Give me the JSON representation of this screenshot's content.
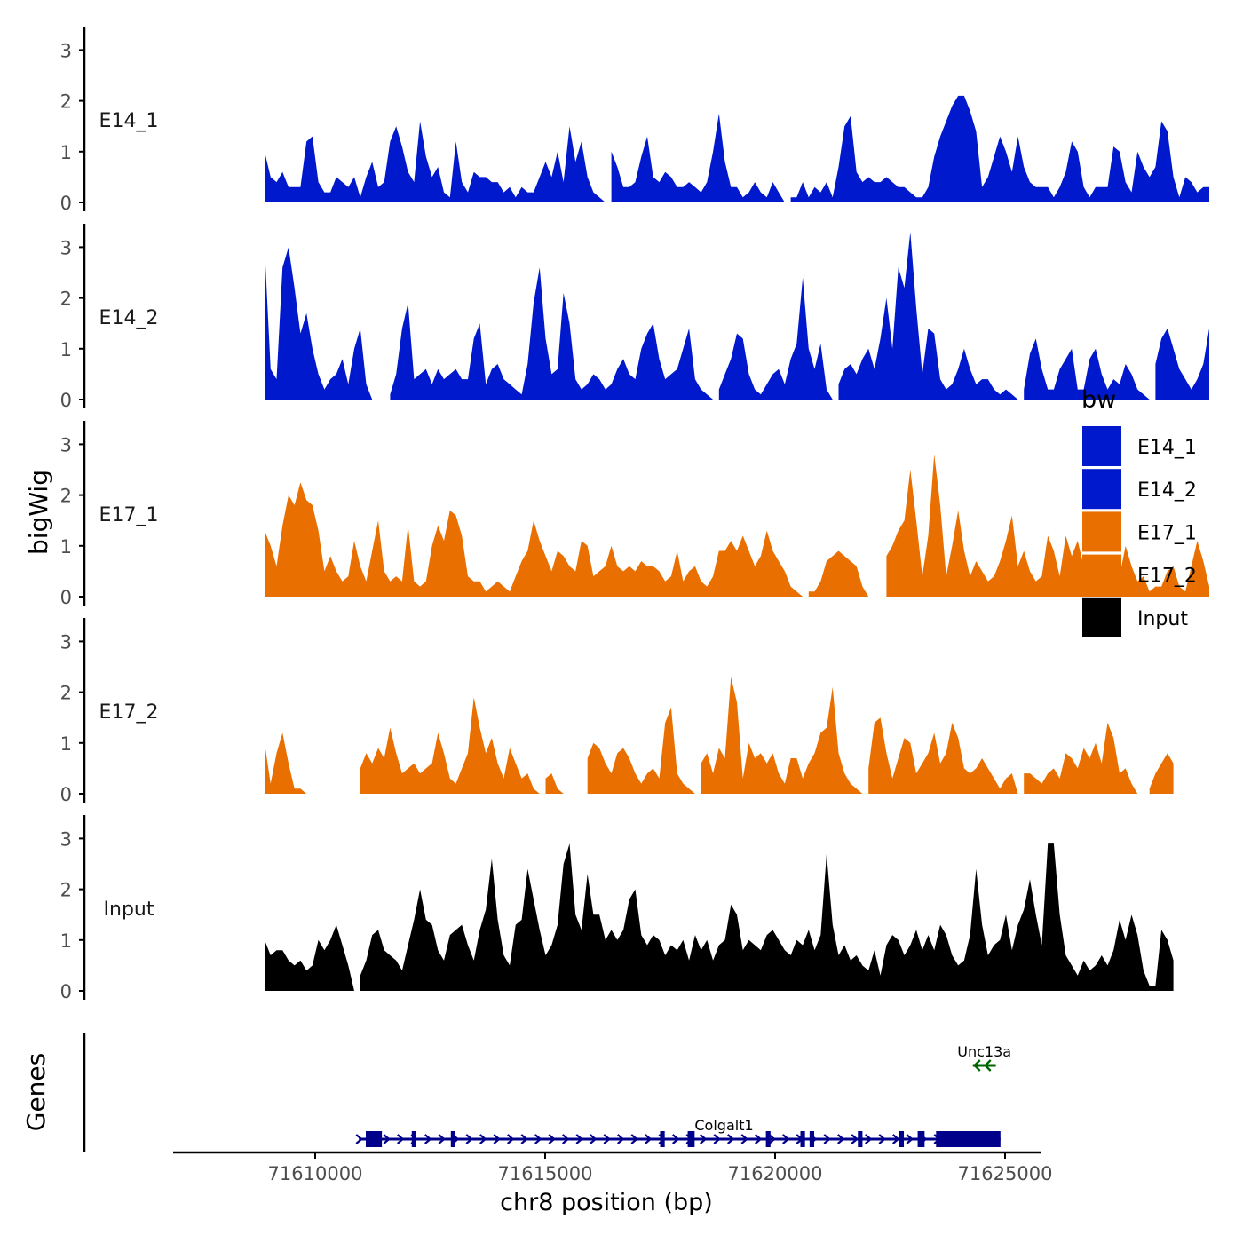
{
  "chart_data": {
    "type": "area",
    "y_axis_title": "bigWig",
    "genes_axis_title": "Genes",
    "xlabel": "chr8 position (bp)",
    "xlim": [
      71606000,
      71626000
    ],
    "x_ticks": [
      71610000,
      71615000,
      71620000,
      71625000
    ],
    "x_tick_labels": [
      "71610000",
      "71615000",
      "71620000",
      "71625000"
    ],
    "ylim": [
      0,
      3.4
    ],
    "y_ticks": [
      0,
      1,
      2,
      3
    ],
    "y_tick_labels": [
      "0",
      "1",
      "2",
      "3"
    ],
    "x_start": 71608900,
    "bin_width": 130,
    "legend": {
      "title": "bw",
      "position": "right",
      "items": [
        {
          "label": "E14_1",
          "color": "#0019CC"
        },
        {
          "label": "E14_2",
          "color": "#0019CC"
        },
        {
          "label": "E17_1",
          "color": "#E97000"
        },
        {
          "label": "E17_2",
          "color": "#E97000"
        },
        {
          "label": "Input",
          "color": "#000000"
        }
      ]
    },
    "tracks": [
      {
        "name": "E14_1",
        "color": "#0019CC",
        "values": [
          1.0,
          0.5,
          0.4,
          0.6,
          0.3,
          0.3,
          0.3,
          1.2,
          1.3,
          0.4,
          0.2,
          0.2,
          0.5,
          0.4,
          0.3,
          0.5,
          0.1,
          0.5,
          0.8,
          0.3,
          0.4,
          1.2,
          1.5,
          1.1,
          0.6,
          0.4,
          1.6,
          0.9,
          0.5,
          0.7,
          0.2,
          0.1,
          1.2,
          0.4,
          0.2,
          0.6,
          0.5,
          0.5,
          0.4,
          0.4,
          0.2,
          0.3,
          0.1,
          0.3,
          0.2,
          0.2,
          0.5,
          0.8,
          0.5,
          1.0,
          0.4,
          1.5,
          0.8,
          1.2,
          0.5,
          0.2,
          0.1,
          0,
          1.0,
          0.7,
          0.3,
          0.3,
          0.4,
          0.9,
          1.3,
          0.5,
          0.4,
          0.6,
          0.5,
          0.3,
          0.3,
          0.4,
          0.3,
          0.2,
          0.4,
          1.0,
          1.75,
          0.8,
          0.3,
          0.3,
          0.1,
          0.2,
          0.4,
          0.2,
          0.1,
          0.4,
          0.2,
          0.0,
          0.1,
          0.1,
          0.4,
          0.1,
          0.3,
          0.2,
          0.4,
          0.1,
          0.7,
          1.5,
          1.7,
          0.6,
          0.4,
          0.5,
          0.4,
          0.4,
          0.5,
          0.4,
          0.3,
          0.3,
          0.2,
          0.1,
          0.1,
          0.3,
          0.9,
          1.3,
          1.6,
          1.9,
          2.1,
          2.1,
          1.8,
          1.4,
          0.3,
          0.5,
          0.9,
          1.3,
          1.0,
          0.6,
          1.3,
          0.7,
          0.4,
          0.3,
          0.3,
          0.3,
          0.1,
          0.3,
          0.6,
          1.2,
          1.0,
          0.3,
          0.1,
          0.3,
          0.3,
          0.3,
          1.1,
          1.0,
          0.4,
          0.2,
          1.0,
          0.7,
          0.5,
          0.7,
          1.6,
          1.4,
          0.5,
          0.1,
          0.5,
          0.4,
          0.2,
          0.3,
          0.3
        ]
      },
      {
        "name": "E14_2",
        "color": "#0019CC",
        "values": [
          3.0,
          0.6,
          0.4,
          2.6,
          3.0,
          2.2,
          1.3,
          1.7,
          1.0,
          0.5,
          0.2,
          0.4,
          0.5,
          0.8,
          0.3,
          1.0,
          1.4,
          0.3,
          0,
          0,
          0,
          0.1,
          0.5,
          1.4,
          1.9,
          0.4,
          0.5,
          0.6,
          0.3,
          0.6,
          0.4,
          0.5,
          0.6,
          0.4,
          0.4,
          1.2,
          1.5,
          0.3,
          0.6,
          0.7,
          0.4,
          0.3,
          0.2,
          0.1,
          0.7,
          1.9,
          2.6,
          1.2,
          0.5,
          0.6,
          2.1,
          1.5,
          0.4,
          0.2,
          0.3,
          0.5,
          0.4,
          0.2,
          0.3,
          0.6,
          0.8,
          0.5,
          0.4,
          1.0,
          1.3,
          1.5,
          0.8,
          0.4,
          0.5,
          0.6,
          1.0,
          1.4,
          0.4,
          0.2,
          0.1,
          0.0,
          0.2,
          0.5,
          0.8,
          1.3,
          1.2,
          0.5,
          0.2,
          0.1,
          0.3,
          0.5,
          0.6,
          0.3,
          0.8,
          1.1,
          2.4,
          1.0,
          0.6,
          1.1,
          0.2,
          0.0,
          0.3,
          0.6,
          0.7,
          0.5,
          0.8,
          1.0,
          0.6,
          1.2,
          2.0,
          1.0,
          2.6,
          2.2,
          3.3,
          1.8,
          0.5,
          1.4,
          1.3,
          0.4,
          0.2,
          0.3,
          0.6,
          1.0,
          0.6,
          0.3,
          0.4,
          0.4,
          0.2,
          0.1,
          0.2,
          0.1,
          0,
          0.2,
          0.9,
          1.2,
          0.6,
          0.2,
          0.2,
          0.6,
          0.8,
          1.0,
          0.2,
          0.2,
          0.8,
          1.0,
          0.5,
          0.2,
          0.4,
          0.3,
          0.7,
          0.5,
          0.2,
          0.1,
          0,
          0.7,
          1.2,
          1.4,
          1.0,
          0.6,
          0.4,
          0.2,
          0.4,
          0.7,
          1.4
        ]
      },
      {
        "name": "E17_1",
        "color": "#E97000",
        "values": [
          1.3,
          1.0,
          0.6,
          1.4,
          2.0,
          1.8,
          2.25,
          1.9,
          1.8,
          1.3,
          0.5,
          0.8,
          0.5,
          0.3,
          0.4,
          1.1,
          0.6,
          0.3,
          0.9,
          1.5,
          0.5,
          0.3,
          0.4,
          0.3,
          1.4,
          0.3,
          0.2,
          0.3,
          1.0,
          1.4,
          1.1,
          1.7,
          1.6,
          1.2,
          0.4,
          0.3,
          0.3,
          0.1,
          0.2,
          0.3,
          0.2,
          0.1,
          0.4,
          0.7,
          0.9,
          1.5,
          1.1,
          0.8,
          0.5,
          0.9,
          0.8,
          0.6,
          0.5,
          1.1,
          1.0,
          0.4,
          0.5,
          0.6,
          1.0,
          0.6,
          0.5,
          0.6,
          0.5,
          0.7,
          0.6,
          0.6,
          0.5,
          0.3,
          0.4,
          0.9,
          0.3,
          0.5,
          0.6,
          0.3,
          0.2,
          0.4,
          0.9,
          0.9,
          1.1,
          0.9,
          1.2,
          0.9,
          0.6,
          0.8,
          1.3,
          0.9,
          0.7,
          0.5,
          0.2,
          0.1,
          0.0,
          0.1,
          0.1,
          0.3,
          0.7,
          0.8,
          0.9,
          0.8,
          0.7,
          0.6,
          0.2,
          0,
          0,
          0,
          0.8,
          1.0,
          1.3,
          1.5,
          2.5,
          1.5,
          0.4,
          1.2,
          2.8,
          1.8,
          0.4,
          1.0,
          1.7,
          0.9,
          0.4,
          0.7,
          0.5,
          0.3,
          0.4,
          0.7,
          1.1,
          1.6,
          0.6,
          0.9,
          0.5,
          0.3,
          0.4,
          1.2,
          0.9,
          0.4,
          1.2,
          0.8,
          1.1,
          0.6,
          0.3,
          0.2,
          0.1,
          0.3,
          0.5,
          0.4,
          1.0,
          0.6,
          0.3,
          0.4,
          0.1,
          0.2,
          0.2,
          0.5,
          0.6,
          0.2,
          0.1,
          0.6,
          1.1,
          0.7,
          0.2
        ]
      },
      {
        "name": "E17_2",
        "color": "#E97000",
        "values": [
          1.0,
          0.2,
          0.8,
          1.2,
          0.6,
          0.1,
          0.1,
          0,
          0,
          0,
          0,
          0,
          0,
          0,
          0,
          0,
          0.5,
          0.8,
          0.6,
          0.9,
          0.7,
          1.3,
          0.8,
          0.4,
          0.5,
          0.6,
          0.4,
          0.5,
          0.6,
          1.2,
          0.8,
          0.3,
          0.2,
          0.5,
          0.8,
          1.9,
          1.3,
          0.8,
          1.1,
          0.6,
          0.3,
          0.9,
          0.6,
          0.3,
          0.4,
          0.1,
          0,
          0.3,
          0.4,
          0.1,
          0,
          0,
          0,
          0,
          0.7,
          1.0,
          0.9,
          0.6,
          0.4,
          0.8,
          0.9,
          0.7,
          0.4,
          0.2,
          0.4,
          0.5,
          0.3,
          1.4,
          1.7,
          0.4,
          0.2,
          0.1,
          0,
          0.6,
          0.8,
          0.4,
          0.9,
          0.7,
          2.3,
          1.8,
          0.3,
          1.0,
          0.7,
          0.8,
          0.6,
          0.8,
          0.4,
          0.2,
          0.7,
          0.7,
          0.3,
          0.6,
          0.8,
          1.2,
          1.3,
          2.1,
          0.8,
          0.4,
          0.2,
          0.1,
          0,
          0.5,
          1.4,
          1.5,
          0.8,
          0.3,
          0.7,
          1.1,
          1.0,
          0.4,
          0.6,
          0.8,
          1.2,
          0.6,
          0.8,
          1.4,
          1.1,
          0.5,
          0.4,
          0.5,
          0.7,
          0.5,
          0.3,
          0.1,
          0.3,
          0.4,
          0,
          0.4,
          0.4,
          0.3,
          0.2,
          0.4,
          0.5,
          0.3,
          0.8,
          0.7,
          0.5,
          0.9,
          0.7,
          1.0,
          0.6,
          1.4,
          1.1,
          0.4,
          0.5,
          0.2,
          0,
          0,
          0.1,
          0.4,
          0.6,
          0.8,
          0.6
        ]
      },
      {
        "name": "Input",
        "color": "#000000",
        "values": [
          1.0,
          0.7,
          0.8,
          0.8,
          0.6,
          0.5,
          0.6,
          0.4,
          0.5,
          1.0,
          0.8,
          1.0,
          1.3,
          0.9,
          0.5,
          0.0,
          0.3,
          0.6,
          1.1,
          1.2,
          0.8,
          0.7,
          0.6,
          0.4,
          0.9,
          1.4,
          2.0,
          1.4,
          1.3,
          0.8,
          0.6,
          1.1,
          1.2,
          1.3,
          0.9,
          0.6,
          1.2,
          1.6,
          2.6,
          1.4,
          0.7,
          0.5,
          1.3,
          1.4,
          2.4,
          1.8,
          1.2,
          0.7,
          0.9,
          1.3,
          2.5,
          2.9,
          1.5,
          1.2,
          2.3,
          1.5,
          1.5,
          1.0,
          1.2,
          1.0,
          1.2,
          1.8,
          2.0,
          1.1,
          0.9,
          1.1,
          1.0,
          0.7,
          0.9,
          0.8,
          1.0,
          0.6,
          1.1,
          0.8,
          1.0,
          0.6,
          0.9,
          1.0,
          1.7,
          1.5,
          0.8,
          1.0,
          0.9,
          0.8,
          1.1,
          1.2,
          1.0,
          0.8,
          0.7,
          1.0,
          0.9,
          1.2,
          0.8,
          1.1,
          2.7,
          1.3,
          0.7,
          0.9,
          0.6,
          0.7,
          0.5,
          0.4,
          0.8,
          0.3,
          0.9,
          1.1,
          1.0,
          0.7,
          0.9,
          1.2,
          0.8,
          1.1,
          0.8,
          1.3,
          1.1,
          0.7,
          0.5,
          0.6,
          1.1,
          2.4,
          1.3,
          0.7,
          0.9,
          1.0,
          1.5,
          0.8,
          1.3,
          1.6,
          2.2,
          1.5,
          0.9,
          2.9,
          2.9,
          1.5,
          0.7,
          0.5,
          0.3,
          0.6,
          0.4,
          0.5,
          0.7,
          0.5,
          0.8,
          1.4,
          1.0,
          1.5,
          1.1,
          0.4,
          0.1,
          0.1,
          1.2,
          1.0,
          0.6
        ]
      }
    ],
    "genes": [
      {
        "name": "Colgalt1",
        "strand": "+",
        "start": 71610950,
        "end": 71624900,
        "exons": [
          [
            71611100,
            71611450
          ],
          [
            71612100,
            71612200
          ],
          [
            71612950,
            71613050
          ],
          [
            71617500,
            71617600
          ],
          [
            71618100,
            71618250
          ],
          [
            71619800,
            71619900
          ],
          [
            71620550,
            71620650
          ],
          [
            71620750,
            71620850
          ],
          [
            71621800,
            71621900
          ],
          [
            71622700,
            71622800
          ],
          [
            71623100,
            71623250
          ],
          [
            71623500,
            71624900
          ]
        ],
        "color": "#00008B"
      },
      {
        "name": "Unc13a",
        "strand": "-",
        "start": 71624300,
        "end": 71624800,
        "exons": [],
        "color": "#006400"
      }
    ]
  }
}
